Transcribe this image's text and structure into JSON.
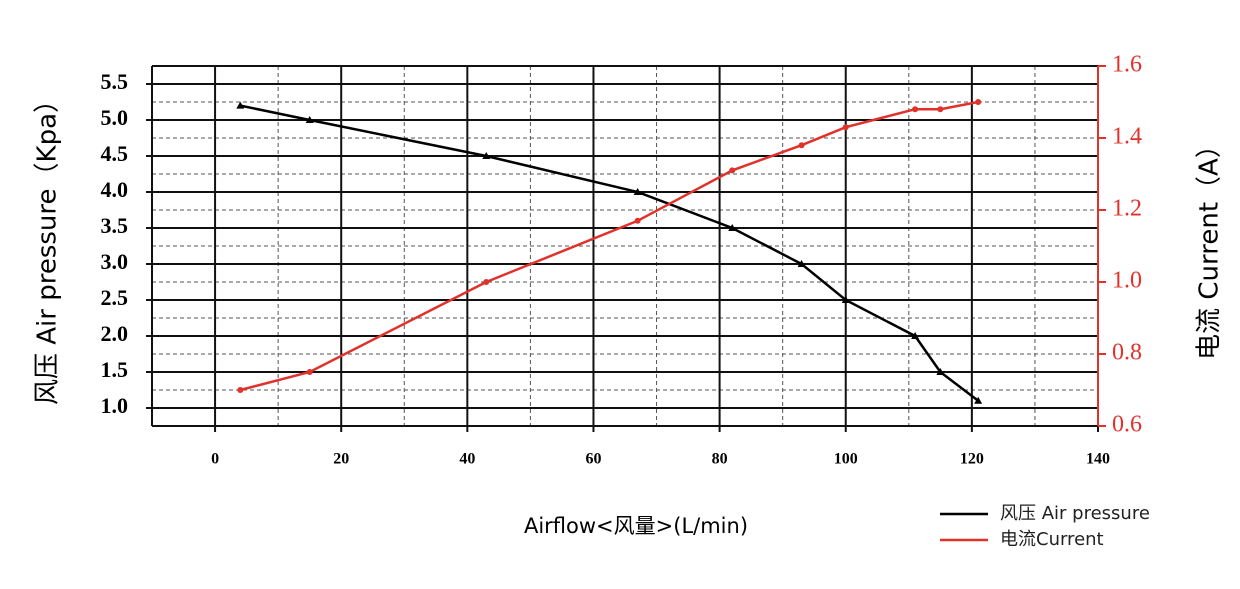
{
  "chart_data": {
    "type": "line",
    "x_label": "Airflow<风量>(L/min)",
    "y_label": "风压 Air pressure（Kpa）",
    "y2_label": "电流 Current（A）",
    "x": [
      4,
      15,
      43,
      67,
      82,
      93,
      100,
      111,
      115,
      121
    ],
    "series": [
      {
        "name": "风压 Air pressure",
        "color": "#000000",
        "values": [
          5.2,
          5.0,
          4.5,
          4.0,
          3.5,
          3.0,
          2.5,
          2.0,
          1.5,
          1.1
        ]
      },
      {
        "name": "电流Current",
        "color": "#e0312b",
        "axis": "y2",
        "values": [
          0.7,
          0.75,
          1.0,
          1.17,
          1.31,
          1.38,
          1.43,
          1.48,
          1.48,
          1.5
        ]
      }
    ],
    "xlim": [
      -10,
      140
    ],
    "xticks": [
      0,
      20,
      40,
      60,
      80,
      100,
      120,
      140
    ],
    "ylim": [
      0.75,
      5.75
    ],
    "yticks": [
      {
        "value": 1.0,
        "label": "1.0"
      },
      1.5,
      {
        "value": 2.0,
        "label": "2.0"
      },
      2.5,
      {
        "value": 3.0,
        "label": "3.0"
      },
      3.5,
      {
        "value": 4.0,
        "label": "4.0"
      },
      4.5,
      {
        "value": 5.0,
        "label": "5.0"
      },
      5.5
    ],
    "y2lim": [
      0.6,
      1.6
    ],
    "y2ticks": [
      0.6,
      0.8,
      {
        "value": 1.0,
        "label": "1.0"
      },
      1.2,
      1.4,
      1.6
    ],
    "grid": true,
    "minor_grid": true,
    "legend": "bottom-right"
  }
}
